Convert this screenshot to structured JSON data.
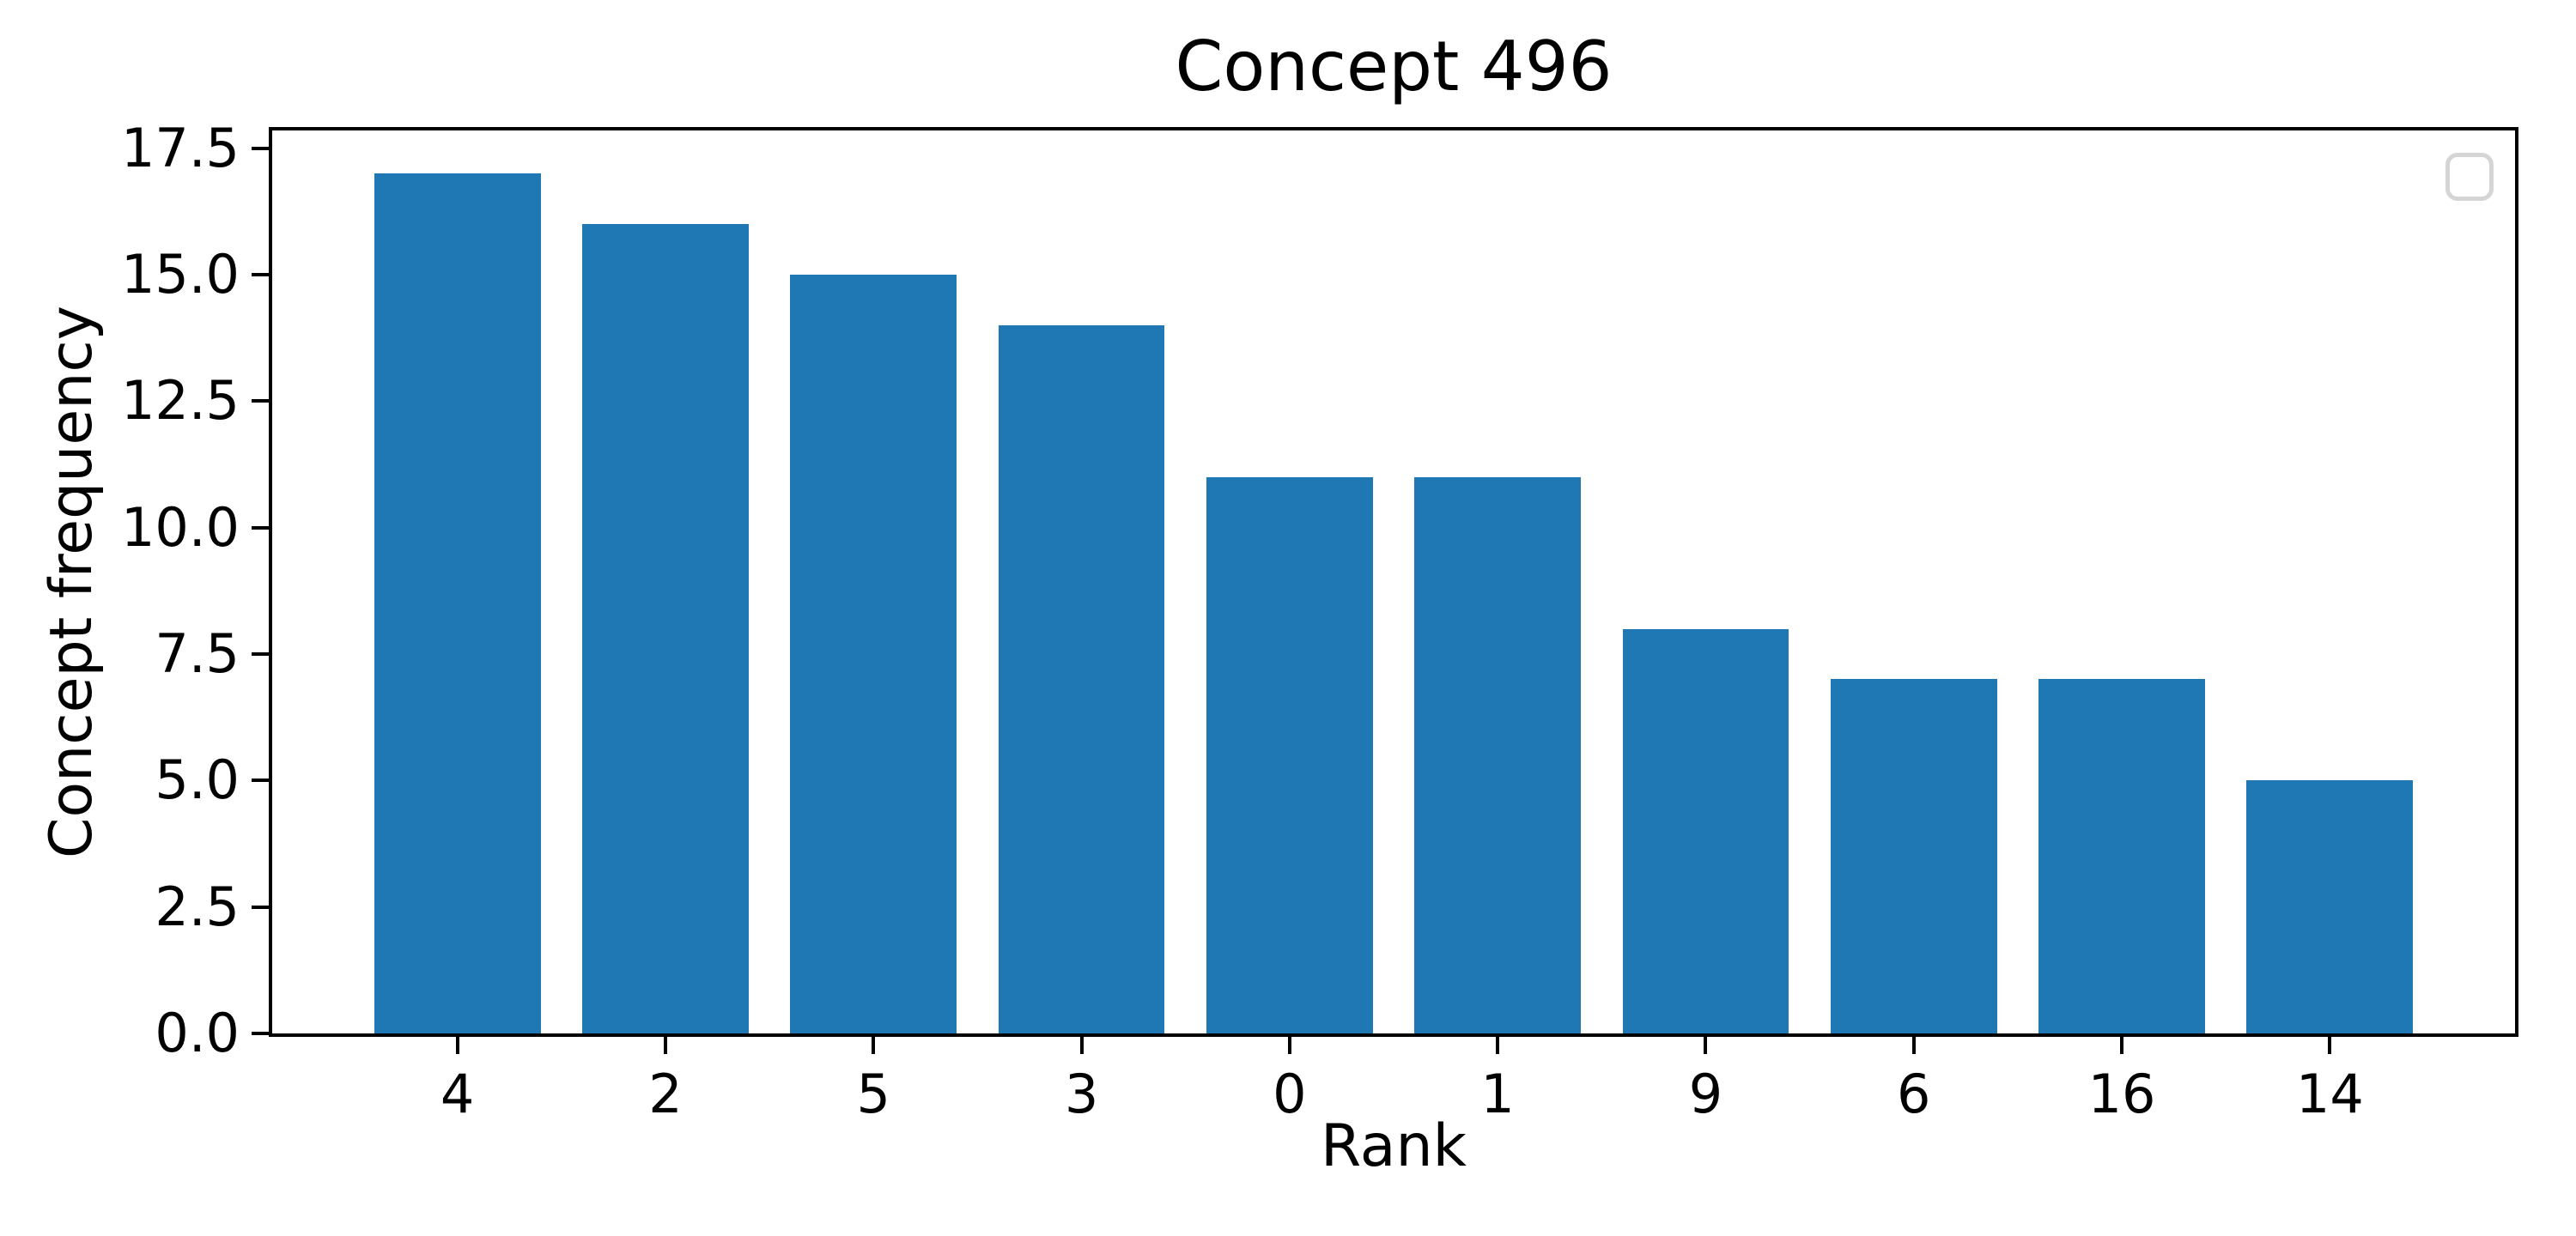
{
  "page": {
    "background_color": "#ffffff",
    "text_color": "#000000"
  },
  "chart_data": {
    "type": "bar",
    "title": "Concept 496",
    "xlabel": "Rank",
    "ylabel": "Concept frequency",
    "categories": [
      "4",
      "2",
      "5",
      "3",
      "0",
      "1",
      "9",
      "6",
      "16",
      "14"
    ],
    "values": [
      17,
      16,
      15,
      14,
      11,
      11,
      8,
      7,
      7,
      5
    ],
    "bar_color": "#1f77b4",
    "bar_width": 0.8,
    "xlim": [
      -0.89,
      9.89
    ],
    "ylim": [
      0,
      17.85
    ],
    "ytick_values": [
      0,
      2.5,
      5,
      7.5,
      10,
      12.5,
      15,
      17.5
    ],
    "ytick_labels": [
      "0.0",
      "2.5",
      "5.0",
      "7.5",
      "10.0",
      "12.5",
      "15.0",
      "17.5"
    ],
    "grid": false,
    "legend": {
      "visible": true,
      "position": "upper right",
      "entries": []
    }
  }
}
